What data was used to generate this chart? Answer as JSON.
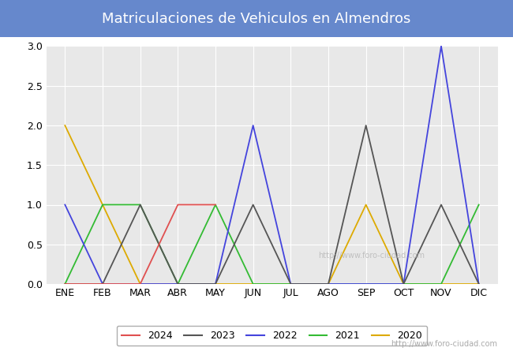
{
  "title": "Matriculaciones de Vehiculos en Almendros",
  "months": [
    "ENE",
    "FEB",
    "MAR",
    "ABR",
    "MAY",
    "JUN",
    "JUL",
    "AGO",
    "SEP",
    "OCT",
    "NOV",
    "DIC"
  ],
  "series": {
    "2024": {
      "color": "#e05050",
      "data": [
        0,
        0,
        0,
        1,
        1,
        null,
        null,
        null,
        null,
        null,
        null,
        null
      ]
    },
    "2023": {
      "color": "#555555",
      "data": [
        0,
        0,
        1,
        0,
        0,
        1,
        0,
        0,
        2,
        0,
        1,
        0
      ]
    },
    "2022": {
      "color": "#4444dd",
      "data": [
        1,
        0,
        0,
        0,
        0,
        2,
        0,
        0,
        0,
        0,
        3,
        0
      ]
    },
    "2021": {
      "color": "#33bb33",
      "data": [
        0,
        1,
        1,
        0,
        1,
        0,
        0,
        0,
        0,
        0,
        0,
        1
      ]
    },
    "2020": {
      "color": "#ddaa00",
      "data": [
        2,
        1,
        0,
        0,
        0,
        0,
        0,
        0,
        1,
        0,
        0,
        0
      ]
    }
  },
  "ylim": [
    0.0,
    3.0
  ],
  "yticks": [
    0.0,
    0.5,
    1.0,
    1.5,
    2.0,
    2.5,
    3.0
  ],
  "title_bg_color": "#6688cc",
  "title_text_color": "#ffffff",
  "plot_bg_color": "#e8e8e8",
  "fig_bg_color": "#ffffff",
  "grid_color": "#ffffff",
  "watermark": "http://www.foro-ciudad.com",
  "legend_years": [
    "2024",
    "2023",
    "2022",
    "2021",
    "2020"
  ],
  "title_fontsize": 13,
  "tick_fontsize": 9,
  "legend_fontsize": 9
}
